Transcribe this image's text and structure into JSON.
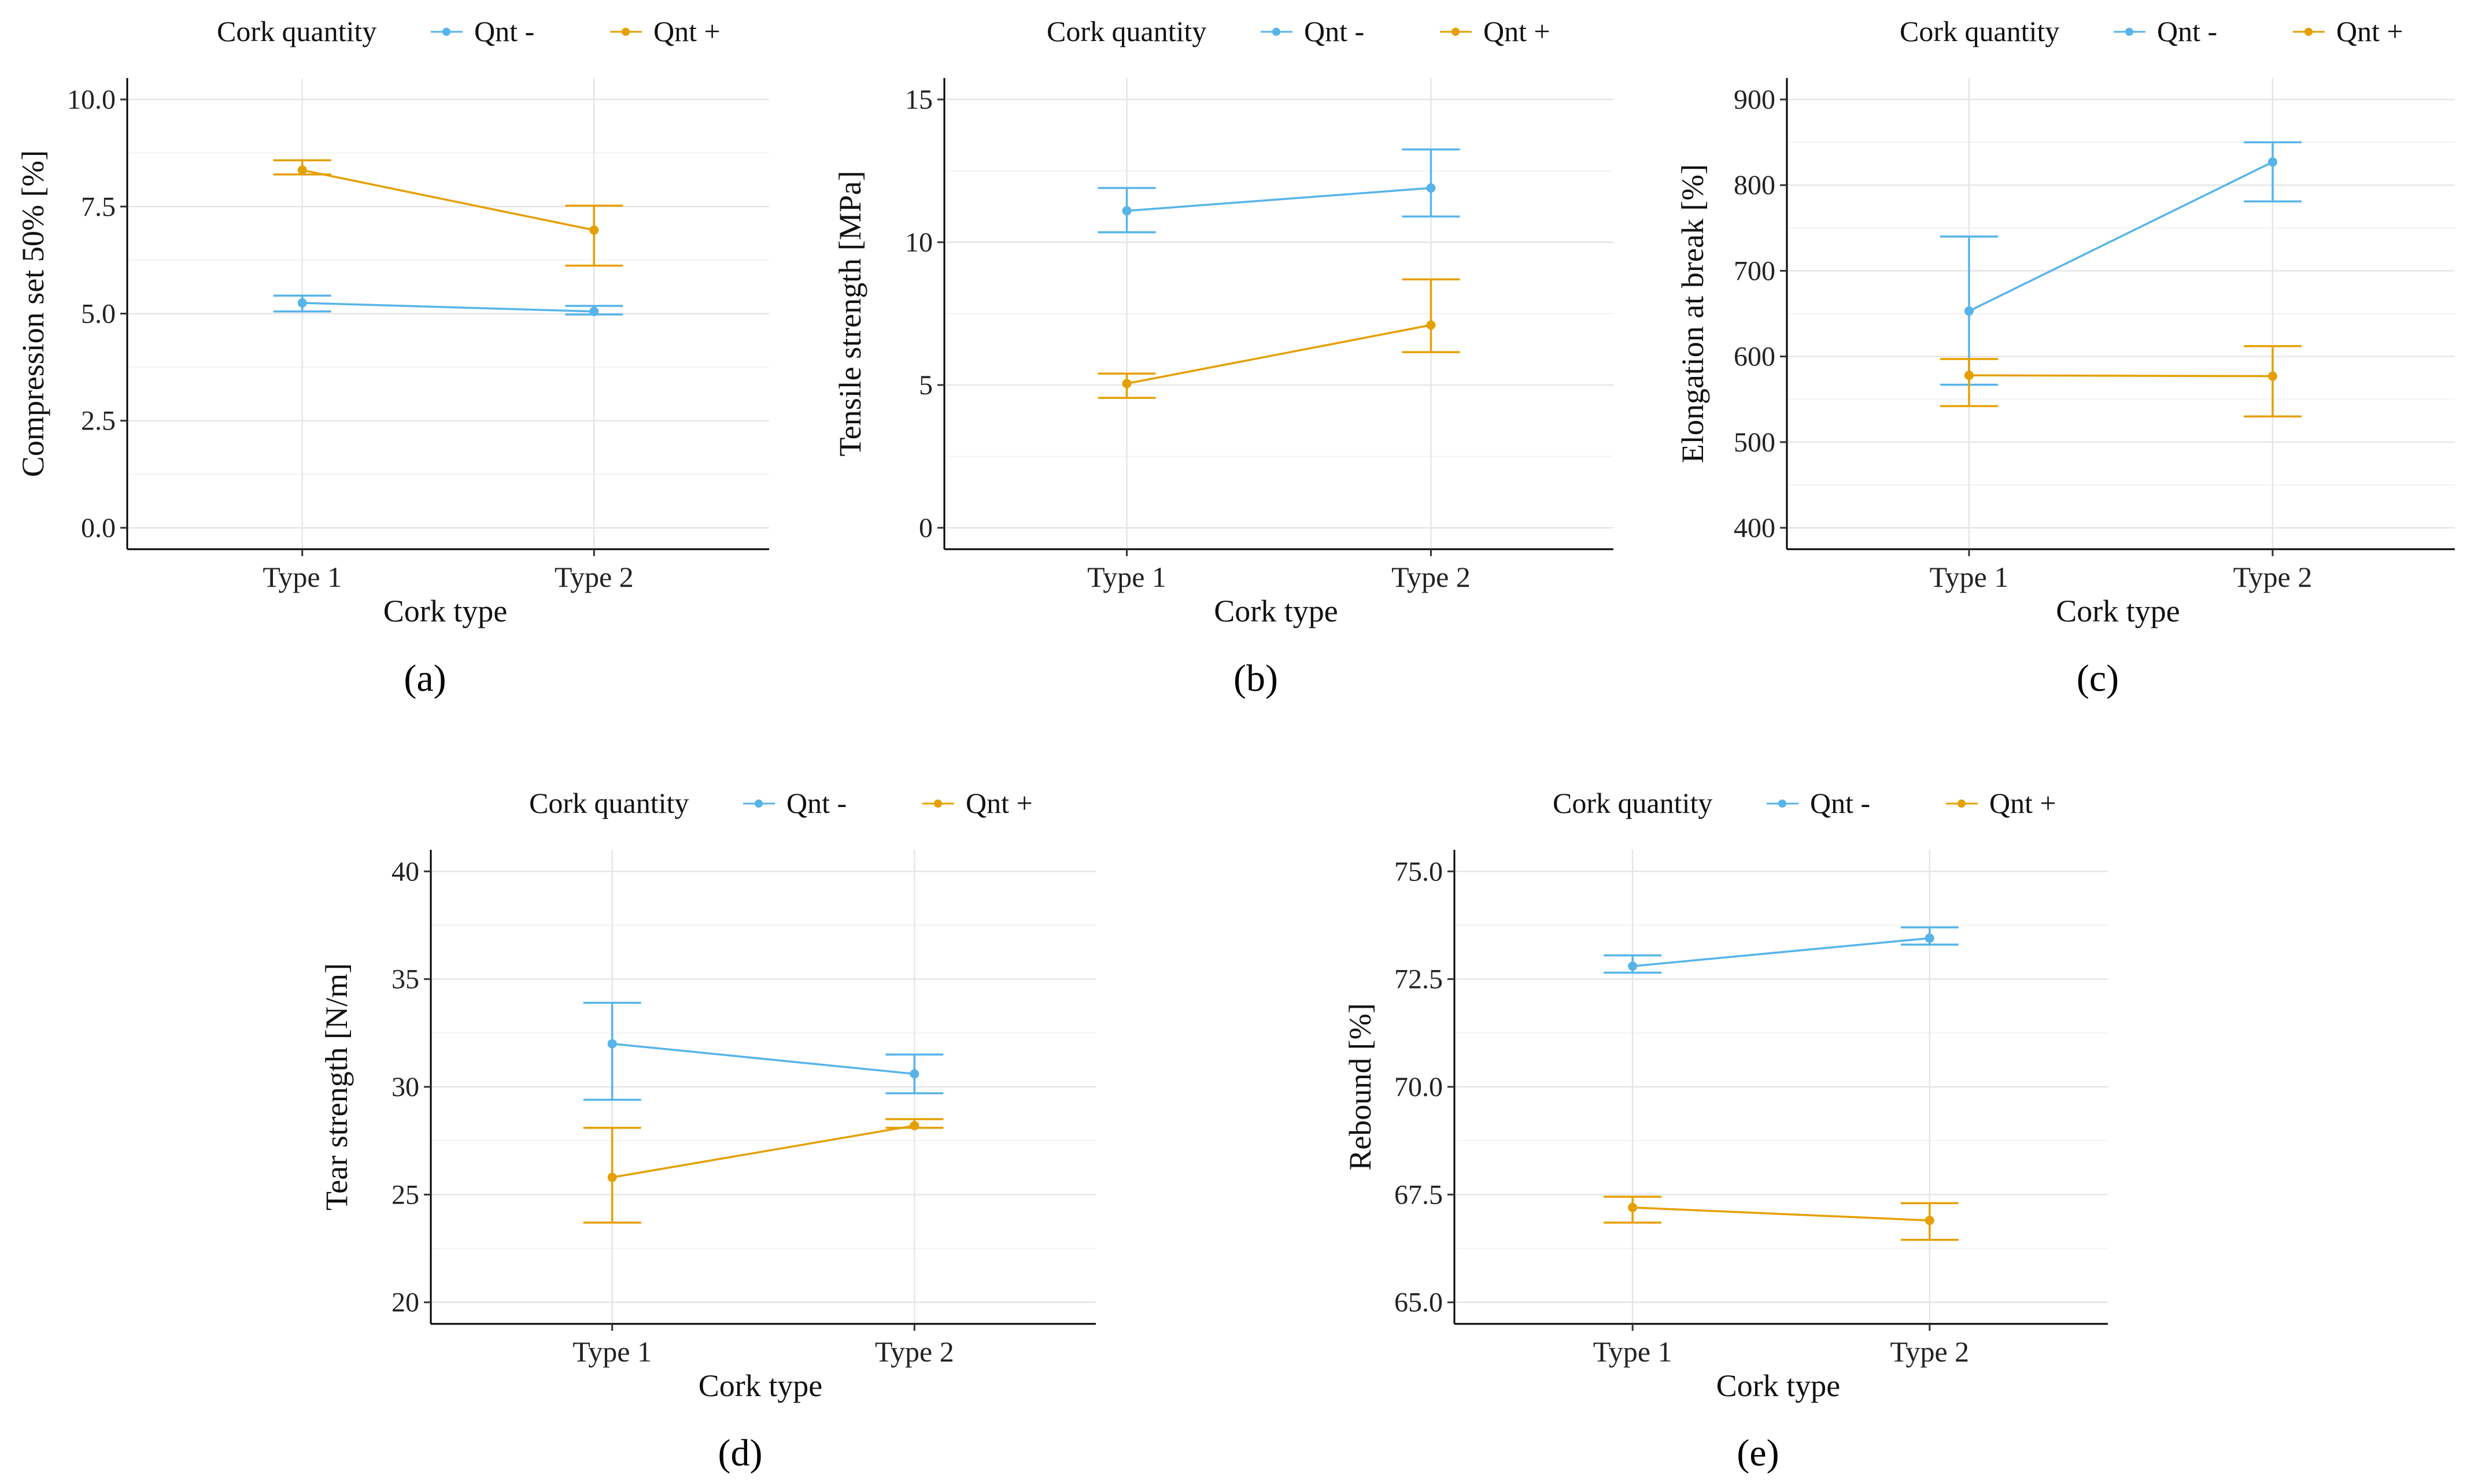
{
  "chart_data": [
    {
      "type": "line",
      "panel_label": "(a)",
      "legend_title": "Cork quantity",
      "categories": [
        "Type 1",
        "Type 2"
      ],
      "xlabel": "Cork type",
      "ylabel": "Compression set 50% [%]",
      "ylim": [
        -0.5,
        10.5
      ],
      "yticks": [
        0.0,
        2.5,
        5.0,
        7.5,
        10.0
      ],
      "ytick_labels": [
        "0.0",
        "2.5",
        "5.0",
        "7.5",
        "10.0"
      ],
      "series": [
        {
          "name": "Qnt -",
          "color": "#56B4E9",
          "values": [
            5.25,
            5.05
          ],
          "lower": [
            5.05,
            4.98
          ],
          "upper": [
            5.42,
            5.18
          ]
        },
        {
          "name": "Qnt +",
          "color": "#E69F00",
          "values": [
            8.35,
            6.95
          ],
          "lower": [
            8.25,
            6.12
          ],
          "upper": [
            8.58,
            7.52
          ]
        }
      ]
    },
    {
      "type": "line",
      "panel_label": "(b)",
      "legend_title": "Cork quantity",
      "categories": [
        "Type 1",
        "Type 2"
      ],
      "xlabel": "Cork type",
      "ylabel": "Tensile strength [MPa]",
      "ylim": [
        -0.75,
        15.75
      ],
      "yticks": [
        0,
        5,
        10,
        15
      ],
      "ytick_labels": [
        "0",
        "5",
        "10",
        "15"
      ],
      "series": [
        {
          "name": "Qnt -",
          "color": "#56B4E9",
          "values": [
            11.1,
            11.9
          ],
          "lower": [
            10.35,
            10.9
          ],
          "upper": [
            11.9,
            13.25
          ]
        },
        {
          "name": "Qnt +",
          "color": "#E69F00",
          "values": [
            5.05,
            7.1
          ],
          "lower": [
            4.55,
            6.15
          ],
          "upper": [
            5.4,
            8.7
          ]
        }
      ]
    },
    {
      "type": "line",
      "panel_label": "(c)",
      "legend_title": "Cork quantity",
      "categories": [
        "Type 1",
        "Type 2"
      ],
      "xlabel": "Cork type",
      "ylabel": "Elongation at break [%]",
      "ylim": [
        375,
        925
      ],
      "yticks": [
        400,
        500,
        600,
        700,
        800,
        900
      ],
      "ytick_labels": [
        "400",
        "500",
        "600",
        "700",
        "800",
        "900"
      ],
      "series": [
        {
          "name": "Qnt -",
          "color": "#56B4E9",
          "values": [
            653,
            827
          ],
          "lower": [
            567,
            781
          ],
          "upper": [
            740,
            850
          ]
        },
        {
          "name": "Qnt +",
          "color": "#E69F00",
          "values": [
            578,
            577
          ],
          "lower": [
            542,
            530
          ],
          "upper": [
            597,
            612
          ]
        }
      ]
    },
    {
      "type": "line",
      "panel_label": "(d)",
      "legend_title": "Cork quantity",
      "categories": [
        "Type 1",
        "Type 2"
      ],
      "xlabel": "Cork type",
      "ylabel": "Tear strength [N/m]",
      "ylim": [
        19.0,
        41.0
      ],
      "yticks": [
        20,
        25,
        30,
        35,
        40
      ],
      "ytick_labels": [
        "20",
        "25",
        "30",
        "35",
        "40"
      ],
      "series": [
        {
          "name": "Qnt -",
          "color": "#56B4E9",
          "values": [
            32.0,
            30.6
          ],
          "lower": [
            29.4,
            29.7
          ],
          "upper": [
            33.9,
            31.5
          ]
        },
        {
          "name": "Qnt +",
          "color": "#E69F00",
          "values": [
            25.8,
            28.2
          ],
          "lower": [
            23.7,
            28.1
          ],
          "upper": [
            28.1,
            28.5
          ]
        }
      ]
    },
    {
      "type": "line",
      "panel_label": "(e)",
      "legend_title": "Cork quantity",
      "categories": [
        "Type 1",
        "Type 2"
      ],
      "xlabel": "Cork type",
      "ylabel": "Rebound [%]",
      "ylim": [
        64.5,
        75.5
      ],
      "yticks": [
        65.0,
        67.5,
        70.0,
        72.5,
        75.0
      ],
      "ytick_labels": [
        "65.0",
        "67.5",
        "70.0",
        "72.5",
        "75.0"
      ],
      "series": [
        {
          "name": "Qnt -",
          "color": "#56B4E9",
          "values": [
            72.8,
            73.45
          ],
          "lower": [
            72.65,
            73.3
          ],
          "upper": [
            73.05,
            73.7
          ]
        },
        {
          "name": "Qnt +",
          "color": "#E69F00",
          "values": [
            67.2,
            66.9
          ],
          "lower": [
            66.85,
            66.45
          ],
          "upper": [
            67.45,
            67.3
          ]
        }
      ]
    }
  ]
}
